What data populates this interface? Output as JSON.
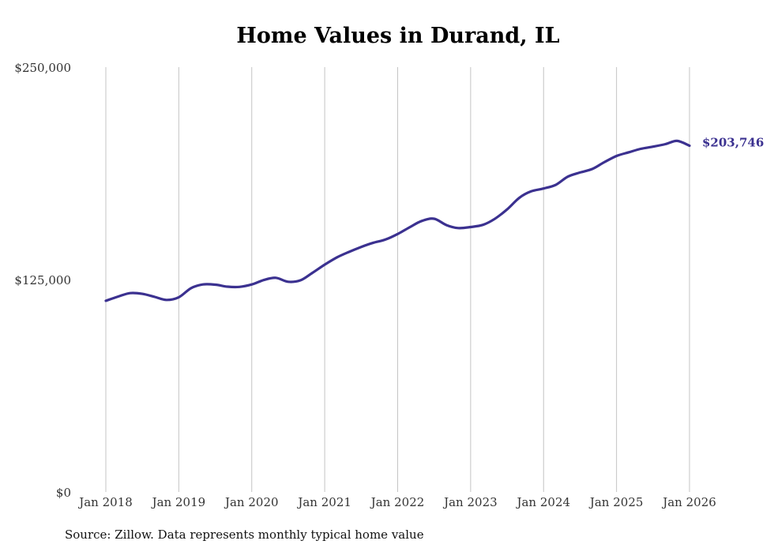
{
  "chart_data": {
    "type": "line",
    "title": "Home Values in Durand, IL",
    "xlabel": "",
    "ylabel": "",
    "ylim": [
      0,
      250000
    ],
    "xlim": [
      2018,
      2026
    ],
    "y_ticks": [
      {
        "value": 0,
        "label": "$0"
      },
      {
        "value": 125000,
        "label": "$125,000"
      },
      {
        "value": 250000,
        "label": "$250,000"
      }
    ],
    "x_ticks": [
      {
        "value": 2018,
        "label": "Jan 2018"
      },
      {
        "value": 2019,
        "label": "Jan 2019"
      },
      {
        "value": 2020,
        "label": "Jan 2020"
      },
      {
        "value": 2021,
        "label": "Jan 2021"
      },
      {
        "value": 2022,
        "label": "Jan 2022"
      },
      {
        "value": 2023,
        "label": "Jan 2023"
      },
      {
        "value": 2024,
        "label": "Jan 2024"
      },
      {
        "value": 2025,
        "label": "Jan 2025"
      },
      {
        "value": 2026,
        "label": "Jan 2026"
      }
    ],
    "series": [
      {
        "name": "Typical home value",
        "color": "#3b3190",
        "x": [
          2018.0,
          2018.17,
          2018.33,
          2018.5,
          2018.67,
          2018.83,
          2019.0,
          2019.17,
          2019.33,
          2019.5,
          2019.67,
          2019.83,
          2020.0,
          2020.17,
          2020.33,
          2020.5,
          2020.67,
          2020.83,
          2021.0,
          2021.17,
          2021.33,
          2021.5,
          2021.67,
          2021.83,
          2022.0,
          2022.17,
          2022.33,
          2022.5,
          2022.67,
          2022.83,
          2023.0,
          2023.17,
          2023.33,
          2023.5,
          2023.67,
          2023.83,
          2024.0,
          2024.17,
          2024.33,
          2024.5,
          2024.67,
          2024.83,
          2025.0,
          2025.17,
          2025.33,
          2025.5,
          2025.67,
          2025.83,
          2026.0
        ],
        "values": [
          112500,
          115000,
          117000,
          116600,
          114800,
          113000,
          114600,
          120000,
          122100,
          122000,
          120800,
          120700,
          122100,
          124800,
          126000,
          123700,
          124600,
          128900,
          133800,
          138100,
          141200,
          144200,
          146700,
          148500,
          151800,
          155900,
          159500,
          160800,
          157000,
          155300,
          155900,
          157200,
          160700,
          166300,
          173200,
          176900,
          178600,
          180800,
          185500,
          188000,
          190100,
          194000,
          197700,
          199900,
          201900,
          203200,
          204700,
          206600,
          203746
        ]
      }
    ],
    "end_label": "$203,746"
  },
  "source": "Source: Zillow. Data represents monthly typical home value"
}
